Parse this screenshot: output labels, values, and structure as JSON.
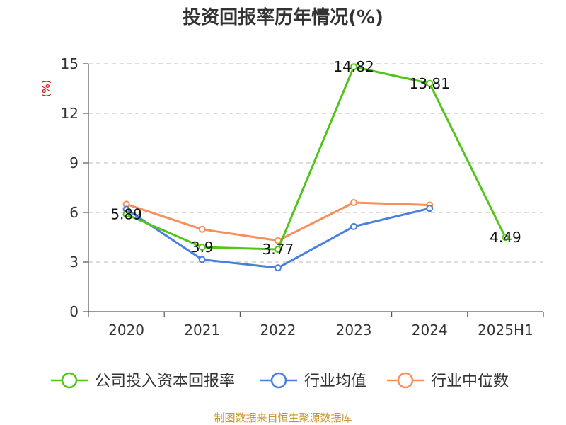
{
  "chart_data": {
    "type": "line",
    "title": "投资回报率历年情况(%)",
    "ylabel": "(%)",
    "xlabel": "",
    "categories": [
      "2020",
      "2021",
      "2022",
      "2023",
      "2024",
      "2025H1"
    ],
    "ylim": [
      0,
      15
    ],
    "yticks": [
      0,
      3,
      6,
      9,
      12,
      15
    ],
    "grid": true,
    "legend_position": "bottom",
    "series": [
      {
        "name": "公司投入资本回报率",
        "color": "#52c41a",
        "values": [
          5.89,
          3.9,
          3.77,
          14.82,
          13.81,
          4.49
        ],
        "labels": [
          "5.89",
          "3.9",
          "3.77",
          "14.82",
          "13.81",
          "4.49"
        ]
      },
      {
        "name": "行业均值",
        "color": "#4a7fdc",
        "values": [
          6.2,
          3.15,
          2.65,
          5.15,
          6.25,
          null
        ]
      },
      {
        "name": "行业中位数",
        "color": "#f5905a",
        "values": [
          6.5,
          4.98,
          4.3,
          6.6,
          6.45,
          null
        ]
      }
    ]
  },
  "footer": {
    "source": "制图数据来自恒生聚源数据库"
  }
}
